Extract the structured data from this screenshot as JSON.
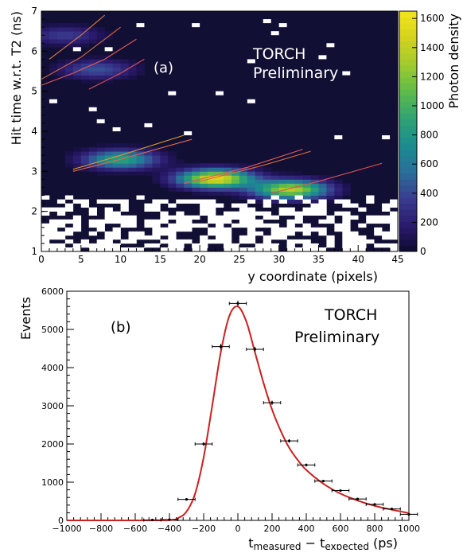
{
  "chart_data": [
    {
      "type": "heatmap",
      "panel_label": "(a)",
      "annotation_lines": [
        "TORCH",
        "Preliminary"
      ],
      "xlabel": "y coordinate (pixels)",
      "ylabel": "Hit time w.r.t. T2 (ns)",
      "xlim": [
        0,
        45
      ],
      "ylim": [
        1,
        7
      ],
      "x_ticks": [
        "0",
        "5",
        "10",
        "15",
        "20",
        "25",
        "30",
        "35",
        "40",
        "45"
      ],
      "y_ticks": [
        "1",
        "2",
        "3",
        "4",
        "5",
        "6",
        "7"
      ],
      "colorbar": {
        "label": "Photon density",
        "range": [
          0,
          1650
        ],
        "ticks": [
          "0",
          "200",
          "400",
          "600",
          "800",
          "1000",
          "1200",
          "1400",
          "1600"
        ],
        "colors": [
          "#0d0a2e",
          "#2b1b6e",
          "#3a3d8f",
          "#2a6f9a",
          "#1b8d8f",
          "#2fa374",
          "#5fbb4a",
          "#9fcb2e",
          "#d4d21e",
          "#f2e51b"
        ]
      },
      "background_color": "#120f35",
      "clusters": [
        {
          "x": 10,
          "y": 3.3,
          "peak": 900
        },
        {
          "x": 22,
          "y": 2.82,
          "peak": 1550
        },
        {
          "x": 31.5,
          "y": 2.55,
          "peak": 1350
        },
        {
          "x": 3,
          "y": 6.4,
          "peak": 350
        },
        {
          "x": 7,
          "y": 5.55,
          "peak": 450
        }
      ],
      "curves": [
        {
          "color": "#e05a5a",
          "points": [
            [
              0,
              5.15
            ],
            [
              4,
              5.45
            ],
            [
              8,
              5.8
            ],
            [
              12,
              6.3
            ]
          ]
        },
        {
          "color": "#d86a3a",
          "points": [
            [
              0,
              5.3
            ],
            [
              5,
              5.85
            ],
            [
              10,
              6.6
            ]
          ]
        },
        {
          "color": "#e07a3a",
          "points": [
            [
              1,
              5.8
            ],
            [
              5,
              6.4
            ],
            [
              8,
              6.9
            ]
          ]
        },
        {
          "color": "#e05050",
          "points": [
            [
              6,
              5.05
            ],
            [
              10,
              5.45
            ],
            [
              13,
              5.8
            ]
          ]
        },
        {
          "color": "#d89a2a",
          "points": [
            [
              4,
              3.05
            ],
            [
              10,
              3.4
            ],
            [
              18,
              3.9
            ]
          ]
        },
        {
          "color": "#e06a4a",
          "points": [
            [
              4,
              3.0
            ],
            [
              10,
              3.3
            ],
            [
              19,
              3.8
            ]
          ]
        },
        {
          "color": "#e05a5a",
          "points": [
            [
              18,
              2.7
            ],
            [
              26,
              3.1
            ],
            [
              33,
              3.55
            ]
          ]
        },
        {
          "color": "#d86a3a",
          "points": [
            [
              20,
              2.75
            ],
            [
              28,
              3.15
            ],
            [
              34,
              3.5
            ]
          ]
        },
        {
          "color": "#e05050",
          "points": [
            [
              29,
              2.45
            ],
            [
              35,
              2.75
            ],
            [
              43,
              3.2
            ]
          ]
        }
      ]
    },
    {
      "type": "scatter",
      "panel_label": "(b)",
      "annotation_lines": [
        "TORCH",
        "Preliminary"
      ],
      "ylabel": "Events",
      "xlabel_main_1": "t",
      "xlabel_sub_1": "measured",
      "xlabel_mid": " − t",
      "xlabel_sub_2": "expected",
      "xlabel_unit": " (ps)",
      "xlim": [
        -1000,
        1000
      ],
      "ylim": [
        0,
        6000
      ],
      "x_ticks": [
        "−1000",
        "−800",
        "−600",
        "−400",
        "−200",
        "0",
        "200",
        "400",
        "600",
        "800",
        "1000"
      ],
      "y_ticks": [
        "0",
        "1000",
        "2000",
        "3000",
        "4000",
        "5000",
        "6000"
      ],
      "points_color": "#000000",
      "fit_color": "#cc1f1f",
      "series": [
        {
          "x": [
            -1000,
            -900,
            -800,
            -700,
            -600,
            -500,
            -400,
            -300,
            -200,
            -100,
            0,
            100,
            200,
            300,
            400,
            500,
            600,
            700,
            800,
            900,
            1000
          ],
          "xerr": 50,
          "y": [
            0,
            0,
            0,
            0,
            0,
            10,
            20,
            550,
            2000,
            4550,
            5680,
            4480,
            3080,
            2080,
            1450,
            1030,
            780,
            560,
            420,
            300,
            160
          ],
          "yerr": [
            0,
            0,
            0,
            0,
            0,
            5,
            8,
            25,
            45,
            70,
            75,
            65,
            55,
            45,
            38,
            32,
            28,
            24,
            20,
            17,
            13
          ]
        }
      ],
      "fit": {
        "x": [
          -1000,
          -600,
          -400,
          -350,
          -300,
          -250,
          -200,
          -150,
          -100,
          -50,
          0,
          50,
          100,
          150,
          200,
          250,
          300,
          350,
          400,
          500,
          600,
          700,
          800,
          900,
          1000
        ],
        "y": [
          0,
          0,
          5,
          60,
          230,
          700,
          1650,
          3000,
          4400,
          5350,
          5600,
          5200,
          4400,
          3600,
          2900,
          2350,
          1900,
          1580,
          1320,
          960,
          700,
          520,
          380,
          280,
          190
        ]
      }
    }
  ]
}
